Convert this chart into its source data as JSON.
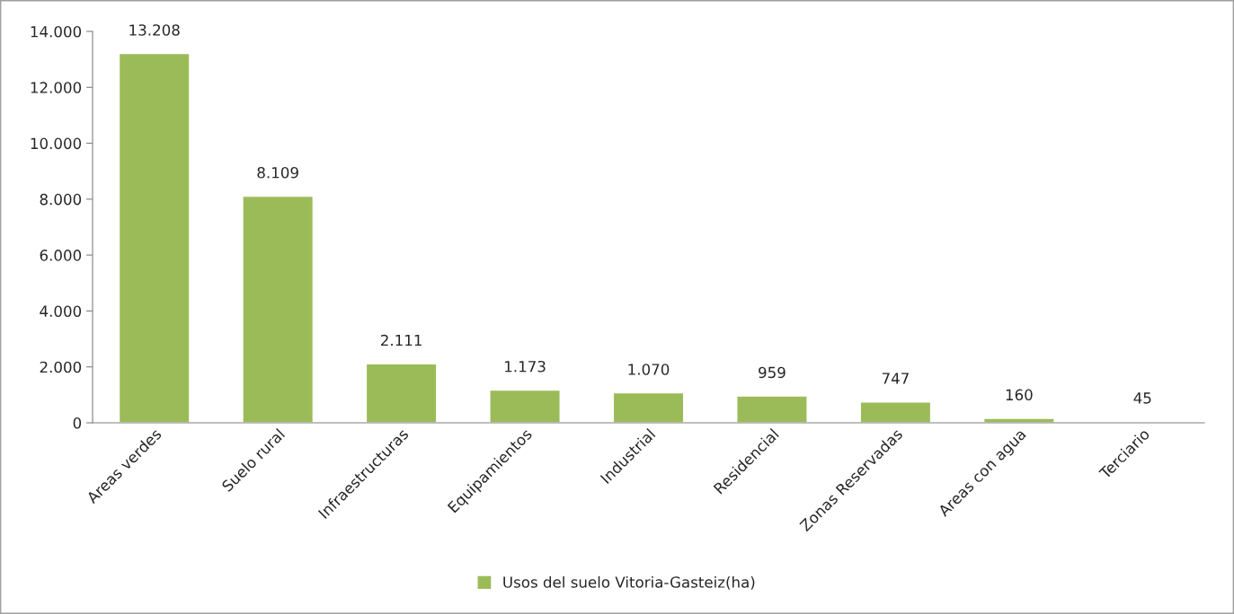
{
  "chart_data": {
    "type": "bar",
    "categories": [
      "Areas verdes",
      "Suelo rural",
      "Infraestructuras",
      "Equipamientos",
      "Industrial",
      "Residencial",
      "Zonas Reservadas",
      "Areas con agua",
      "Terciario"
    ],
    "series": [
      {
        "name": "Usos del suelo Vitoria-Gasteiz(ha)",
        "color": "#9bbb59",
        "values": [
          13208,
          8109,
          2111,
          1173,
          1070,
          959,
          747,
          160,
          45
        ],
        "value_labels": [
          "13.208",
          "8.109",
          "2.111",
          "1.173",
          "1.070",
          "959",
          "747",
          "160",
          "45"
        ]
      }
    ],
    "ylim": [
      0,
      14000
    ],
    "yticks": [
      0,
      {
        "value": 2000,
        "label": "2.000"
      },
      {
        "value": 4000,
        "label": "4.000"
      },
      {
        "value": 6000,
        "label": "6.000"
      },
      {
        "value": 8000,
        "label": "8.000"
      },
      {
        "value": 10000,
        "label": "10.000"
      },
      {
        "value": 12000,
        "label": "12.000"
      },
      {
        "value": 14000,
        "label": "14.000"
      }
    ],
    "grid": false,
    "legend": "bottom"
  }
}
